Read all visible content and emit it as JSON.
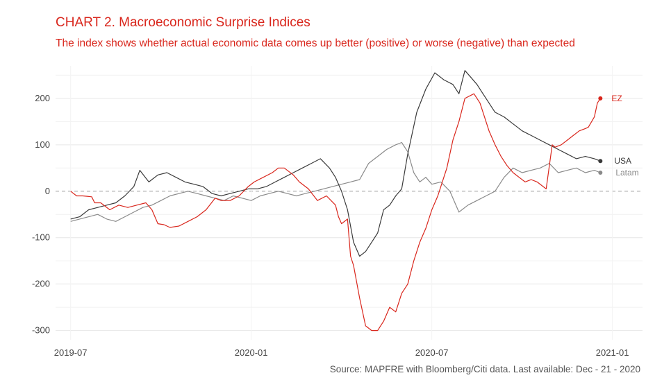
{
  "chart_data": {
    "type": "line",
    "title": "CHART 2. Macroeconomic Surprise Indices",
    "subtitle": "The index shows whether actual economic data comes up better (positive) or worse (negative) than expected",
    "caption": "Source: MAPFRE with Bloomberg/Citi data. Last available: Dec - 21 - 2020",
    "xlabel": "",
    "ylabel": "",
    "ylim": [
      -320,
      270
    ],
    "x_range": [
      -0.5,
      19.0
    ],
    "y_ticks": [
      -300,
      -200,
      -100,
      0,
      100,
      200
    ],
    "x_ticks": [
      {
        "label": "2019-07",
        "value": 0
      },
      {
        "label": "2020-01",
        "value": 6
      },
      {
        "label": "2020-07",
        "value": 12
      },
      {
        "label": "2021-01",
        "value": 18
      }
    ],
    "reference_line": 0,
    "colors": {
      "EZ": "#d9261c",
      "USA": "#3a3a3a",
      "Latam": "#8a8a8a",
      "grid": "#e6e6e6",
      "zero": "#999999"
    },
    "series": [
      {
        "name": "EZ",
        "color": "#d9261c",
        "x": [
          0.0,
          0.2,
          0.4,
          0.7,
          0.8,
          1.0,
          1.3,
          1.6,
          1.9,
          2.2,
          2.5,
          2.7,
          2.9,
          3.1,
          3.3,
          3.6,
          3.9,
          4.2,
          4.5,
          4.8,
          5.0,
          5.3,
          5.6,
          5.9,
          6.1,
          6.4,
          6.7,
          6.9,
          7.1,
          7.4,
          7.6,
          7.9,
          8.2,
          8.5,
          8.8,
          8.9,
          9.0,
          9.2,
          9.3,
          9.4,
          9.6,
          9.8,
          10.0,
          10.2,
          10.4,
          10.6,
          10.8,
          11.0,
          11.2,
          11.4,
          11.6,
          11.8,
          12.0,
          12.2,
          12.5,
          12.7,
          12.9,
          13.1,
          13.4,
          13.6,
          13.9,
          14.1,
          14.3,
          14.5,
          14.7,
          14.9,
          15.1,
          15.3,
          15.5,
          15.7,
          15.8,
          16.0,
          16.1,
          16.3,
          16.5,
          16.7,
          16.9,
          17.1,
          17.2,
          17.4,
          17.5,
          17.6
        ],
        "y": [
          0,
          -10,
          -10,
          -12,
          -25,
          -25,
          -40,
          -30,
          -35,
          -30,
          -25,
          -40,
          -70,
          -72,
          -78,
          -75,
          -65,
          -55,
          -40,
          -15,
          -20,
          -20,
          -10,
          10,
          20,
          30,
          40,
          50,
          50,
          35,
          20,
          5,
          -20,
          -10,
          -30,
          -55,
          -70,
          -60,
          -140,
          -160,
          -230,
          -290,
          -300,
          -300,
          -280,
          -250,
          -260,
          -220,
          -200,
          -150,
          -110,
          -80,
          -40,
          -10,
          50,
          110,
          150,
          200,
          210,
          190,
          130,
          100,
          75,
          55,
          40,
          30,
          20,
          25,
          20,
          10,
          5,
          100,
          95,
          100,
          110,
          120,
          130,
          135,
          138,
          160,
          190,
          200
        ]
      },
      {
        "name": "USA",
        "color": "#3a3a3a",
        "x": [
          0.0,
          0.3,
          0.6,
          0.9,
          1.2,
          1.5,
          1.8,
          2.1,
          2.3,
          2.6,
          2.9,
          3.2,
          3.5,
          3.8,
          4.1,
          4.4,
          4.7,
          5.0,
          5.3,
          5.6,
          5.9,
          6.2,
          6.5,
          6.8,
          7.1,
          7.4,
          7.7,
          8.0,
          8.3,
          8.6,
          8.8,
          9.0,
          9.2,
          9.4,
          9.6,
          9.8,
          10.0,
          10.2,
          10.4,
          10.6,
          10.8,
          11.0,
          11.2,
          11.5,
          11.8,
          12.1,
          12.4,
          12.7,
          12.9,
          13.1,
          13.3,
          13.5,
          13.7,
          13.9,
          14.1,
          14.4,
          14.7,
          15.0,
          15.3,
          15.6,
          15.9,
          16.2,
          16.5,
          16.8,
          17.1,
          17.4,
          17.6
        ],
        "y": [
          -60,
          -55,
          -40,
          -35,
          -30,
          -25,
          -10,
          10,
          45,
          20,
          35,
          40,
          30,
          20,
          15,
          10,
          -5,
          -10,
          -5,
          0,
          5,
          5,
          10,
          20,
          30,
          40,
          50,
          60,
          70,
          50,
          30,
          0,
          -40,
          -110,
          -140,
          -130,
          -110,
          -90,
          -40,
          -30,
          -10,
          5,
          80,
          170,
          220,
          255,
          240,
          230,
          210,
          260,
          245,
          230,
          210,
          190,
          170,
          160,
          145,
          130,
          120,
          110,
          100,
          90,
          80,
          70,
          75,
          70,
          65
        ]
      },
      {
        "name": "Latam",
        "color": "#8a8a8a",
        "x": [
          0.0,
          0.3,
          0.6,
          0.9,
          1.2,
          1.5,
          1.8,
          2.1,
          2.4,
          2.7,
          3.0,
          3.3,
          3.6,
          3.9,
          4.2,
          4.5,
          4.8,
          5.1,
          5.4,
          5.7,
          6.0,
          6.3,
          6.6,
          6.9,
          7.2,
          7.5,
          7.8,
          8.1,
          8.4,
          8.7,
          9.0,
          9.3,
          9.6,
          9.9,
          10.2,
          10.5,
          10.8,
          11.0,
          11.2,
          11.4,
          11.6,
          11.8,
          12.0,
          12.3,
          12.6,
          12.9,
          13.2,
          13.5,
          13.8,
          14.1,
          14.4,
          14.7,
          15.0,
          15.3,
          15.6,
          15.9,
          16.2,
          16.5,
          16.8,
          17.1,
          17.4,
          17.6
        ],
        "y": [
          -65,
          -60,
          -55,
          -50,
          -60,
          -65,
          -55,
          -45,
          -35,
          -30,
          -20,
          -10,
          -5,
          0,
          -5,
          -10,
          -15,
          -20,
          -10,
          -15,
          -20,
          -10,
          -5,
          0,
          -5,
          -10,
          -5,
          0,
          5,
          10,
          15,
          20,
          25,
          60,
          75,
          90,
          100,
          105,
          85,
          40,
          20,
          30,
          15,
          20,
          0,
          -45,
          -30,
          -20,
          -10,
          0,
          30,
          50,
          40,
          45,
          50,
          60,
          40,
          45,
          50,
          40,
          45,
          40
        ]
      }
    ],
    "end_labels": {
      "EZ": "EZ",
      "USA": "USA",
      "Latam": "Latam"
    }
  }
}
